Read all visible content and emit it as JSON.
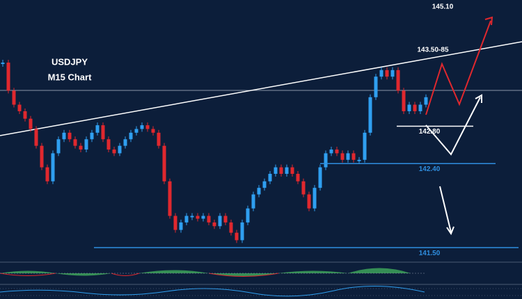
{
  "chart_data": {
    "type": "candlestick",
    "title": "USDJPY",
    "subtitle": "M15 Chart",
    "ylim": [
      141.36,
      144.15
    ],
    "up_color": "#2f9ff0",
    "down_color": "#e0282e",
    "closes": [
      143.48,
      143.18,
      143.03,
      142.96,
      142.88,
      142.77,
      142.59,
      142.36,
      142.21,
      142.51,
      142.66,
      142.73,
      142.66,
      142.59,
      142.55,
      142.66,
      142.73,
      142.81,
      142.66,
      142.55,
      142.51,
      142.59,
      142.66,
      142.73,
      142.77,
      142.81,
      142.77,
      142.73,
      142.59,
      142.21,
      141.84,
      141.69,
      141.77,
      141.84,
      141.84,
      141.81,
      141.84,
      141.77,
      141.73,
      141.84,
      141.77,
      141.66,
      141.58,
      141.77,
      141.92,
      142.07,
      142.14,
      142.21,
      142.29,
      142.36,
      142.29,
      142.36,
      142.29,
      142.21,
      142.07,
      141.92,
      142.14,
      142.36,
      142.51,
      142.55,
      142.51,
      142.44,
      142.51,
      142.44,
      142.44,
      142.73,
      143.11,
      143.33,
      143.4,
      143.33,
      143.4,
      143.18,
      142.96,
      143.03,
      142.96,
      143.03,
      143.11
    ],
    "levels": [
      {
        "value": 142.8,
        "label": "142.80",
        "color": "#ffffff"
      },
      {
        "value": 142.4,
        "label": "142.40",
        "color": "#2f8fe0"
      },
      {
        "value": 141.5,
        "label": "141.50",
        "color": "#2f8fe0"
      }
    ],
    "annotations": [
      "145.10",
      "143.50-85"
    ]
  }
}
